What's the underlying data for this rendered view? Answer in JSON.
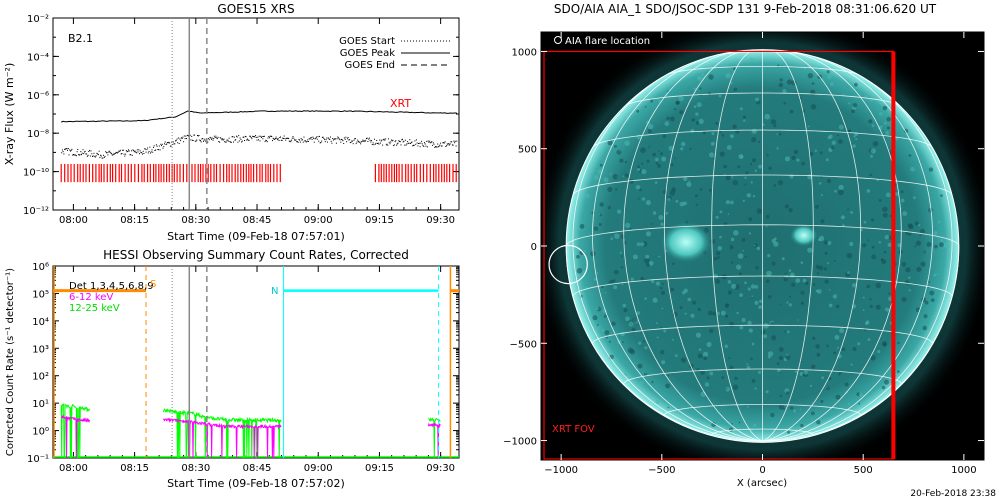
{
  "colors": {
    "xrt_red": "#ff0000",
    "orange": "#ff8c00",
    "magenta": "#ff00ff",
    "green": "#00ff00",
    "cyan": "#00ffff",
    "sun": "#2a9a9a",
    "sun_bright": "#7ee8e0",
    "grid": "#ffffff"
  },
  "footer": {
    "timestamp": "20-Feb-2018 23:38"
  },
  "chart_data": [
    {
      "id": "goes",
      "type": "line",
      "title": "GOES15 XRS",
      "ylabel": "X-ray Flux (W m⁻²)",
      "xlabel": "Start Time (09-Feb-18 07:57:01)",
      "class_label": "B2.1",
      "xrt_label": "XRT",
      "x_range_min": [
        -2,
        36
      ],
      "y_log_range": [
        -12,
        -2
      ],
      "x_ticks": [
        {
          "min": 3,
          "label": "08:00"
        },
        {
          "min": 18,
          "label": "08:15"
        },
        {
          "min": 33,
          "label": "08:30"
        },
        {
          "min": 48,
          "label": "08:45"
        },
        {
          "min": 63,
          "label": "09:00"
        },
        {
          "min": 78,
          "label": "09:15"
        },
        {
          "min": 93,
          "label": "09:30"
        }
      ],
      "y_tick_labels": [
        "10⁻²",
        "10⁻⁴",
        "10⁻⁶",
        "10⁻⁸",
        "10⁻¹⁰",
        "10⁻¹²"
      ],
      "legend": [
        {
          "label": "GOES Start",
          "style": "dotted"
        },
        {
          "label": "GOES Peak",
          "style": "solid"
        },
        {
          "label": "GOES End",
          "style": "dashed"
        }
      ],
      "markers_min": {
        "start": 27.2,
        "peak": 31.4,
        "end": 35.7
      },
      "long_channel": {
        "x_min": [
          0,
          20,
          28,
          31,
          34,
          50,
          70,
          93
        ],
        "log_flux": [
          -7.4,
          -7.35,
          -7.15,
          -6.85,
          -6.95,
          -6.85,
          -6.85,
          -6.95
        ]
      },
      "short_channel": {
        "x_min": [
          0,
          10,
          20,
          26,
          31,
          36,
          50,
          70,
          93
        ],
        "log_flux": [
          -8.9,
          -9.1,
          -8.95,
          -8.55,
          -8.2,
          -8.3,
          -8.25,
          -8.35,
          -8.55
        ]
      },
      "xrt_coverage_min": [
        [
          0,
          54
        ],
        [
          77,
          97
        ]
      ]
    },
    {
      "id": "hessi",
      "type": "line",
      "title": "HESSI Observing Summary Count Rates, Corrected",
      "ylabel": "Corrected Count Rate (s⁻¹ detector⁻¹)",
      "xlabel": "Start Time (09-Feb-18 07:57:02)",
      "x_ticks": [
        {
          "min": 3,
          "label": "08:00"
        },
        {
          "min": 18,
          "label": "08:15"
        },
        {
          "min": 33,
          "label": "08:30"
        },
        {
          "min": 48,
          "label": "08:45"
        },
        {
          "min": 63,
          "label": "09:00"
        },
        {
          "min": 78,
          "label": "09:15"
        },
        {
          "min": 93,
          "label": "09:30"
        }
      ],
      "y_tick_labels": [
        "10⁶",
        "10⁵",
        "10⁴",
        "10³",
        "10²",
        "10¹",
        "10⁰",
        "10⁻¹"
      ],
      "y_log_range": [
        -1,
        6
      ],
      "legend": [
        {
          "label": "Det 1,3,4,5,6,8,9",
          "color_key": "black"
        },
        {
          "label": "6-12 keV",
          "color_key": "magenta"
        },
        {
          "label": "12-25 keV",
          "color_key": "green"
        }
      ],
      "saa_label": "S",
      "night_label": "N",
      "markers_min": {
        "start": 27.2,
        "peak": 31.4,
        "end": 35.7
      },
      "orange_markers_min": [
        20.8,
        95.4
      ],
      "cyan_markers_min": [
        54.5,
        92.5
      ],
      "cyan_night_level_log": 5.1,
      "green_segments": [
        {
          "x_min": [
            0,
            1,
            2,
            3,
            4,
            5,
            6,
            7
          ],
          "log_rate": [
            0.9,
            0.95,
            0.85,
            0.9,
            0.8,
            0.85,
            0.8,
            0.75
          ]
        },
        {
          "x_min": [
            25,
            27,
            29,
            31,
            33,
            35,
            37,
            40,
            45,
            50,
            54
          ],
          "log_rate": [
            0.75,
            0.7,
            0.65,
            0.65,
            0.6,
            0.5,
            0.45,
            0.4,
            0.38,
            0.38,
            0.38
          ]
        },
        {
          "x_min": [
            90,
            91,
            92,
            93
          ],
          "log_rate": [
            0.38,
            0.4,
            0.38,
            0.38
          ]
        }
      ],
      "magenta_segments": [
        {
          "x_min": [
            0,
            2,
            4,
            7
          ],
          "log_rate": [
            0.5,
            0.45,
            0.4,
            0.35
          ]
        },
        {
          "x_min": [
            25,
            30,
            35,
            40,
            45,
            50,
            54
          ],
          "log_rate": [
            0.4,
            0.35,
            0.25,
            0.15,
            0.15,
            0.15,
            0.15
          ]
        },
        {
          "x_min": [
            90,
            93
          ],
          "log_rate": [
            0.2,
            0.2
          ]
        }
      ]
    },
    {
      "id": "aia",
      "type": "heatmap",
      "title": "SDO/AIA AIA_1 SDO/JSOC-SDP 131  9-Feb-2018 08:31:06.620 UT",
      "xlabel": "X (arcsec)",
      "x_range": [
        -1100,
        1100
      ],
      "y_range": [
        -1100,
        1100
      ],
      "x_ticks": [
        -1000,
        -500,
        0,
        500,
        1000
      ],
      "y_ticks": [
        -1000,
        -500,
        0,
        500,
        1000
      ],
      "solar_radius_arcsec": 975,
      "flare_location_label": "AIA flare location",
      "flare_location_arcsec": [
        -965,
        -95
      ],
      "flare_circle_radius_arcsec": 95,
      "xrt_fov_label": "XRT FOV",
      "xrt_fov_arcsec": {
        "x": [
          -1085,
          650
        ],
        "y": [
          -1095,
          1000
        ]
      },
      "active_regions_arcsec": [
        [
          -380,
          20
        ],
        [
          205,
          55
        ]
      ]
    }
  ]
}
